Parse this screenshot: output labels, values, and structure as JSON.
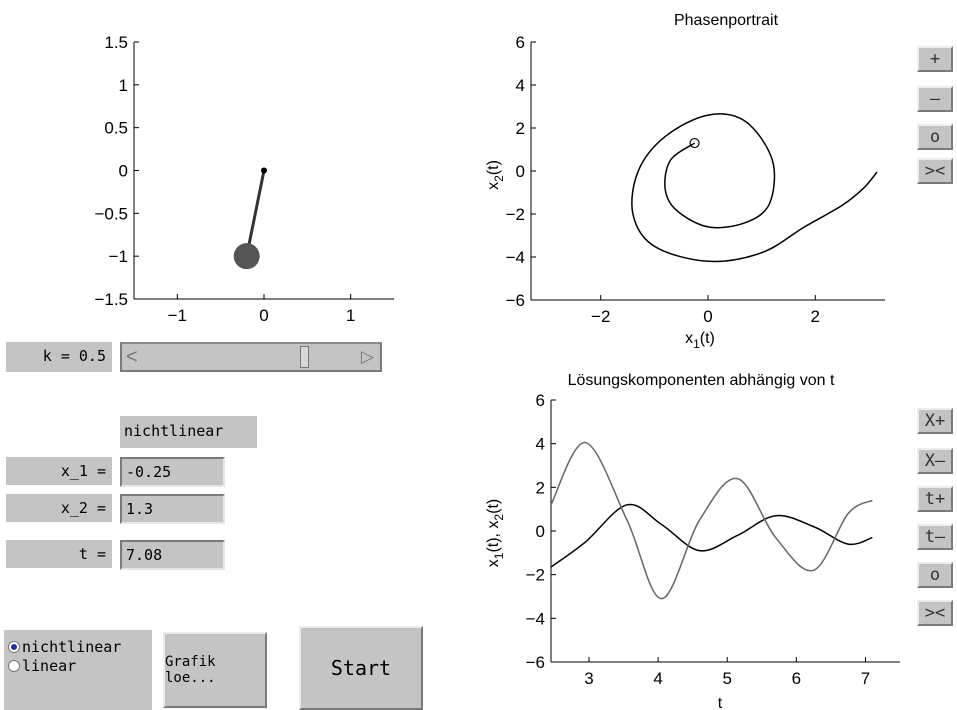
{
  "pendulum_plot": {
    "y_ticks": [
      "1.5",
      "1",
      "0.5",
      "0",
      "−0.5",
      "−1",
      "−1.5"
    ],
    "x_ticks": [
      "−1",
      "0",
      "1"
    ]
  },
  "k_label": "k = 0.5",
  "k_slider": {
    "value": 0.5,
    "left_arrow": "<",
    "right_arrow": "▷"
  },
  "mode_display": "nichtlinear",
  "fields": {
    "x1_label": "x_1 =",
    "x1_value": "-0.25",
    "x2_label": "x_2 =",
    "x2_value": "1.3",
    "t_label": "t =",
    "t_value": "7.08"
  },
  "radio": {
    "options": [
      "nichtlinear",
      "linear"
    ],
    "selected": "nichtlinear"
  },
  "buttons": {
    "clear_label": "Grafik loe...",
    "start_label": "Start"
  },
  "phase_plot": {
    "title": "Phasenportrait",
    "xlabel": "x",
    "xlabel_sub": "1",
    "xlabel_suffix": "(t)",
    "ylabel": "x",
    "ylabel_sub": "2",
    "ylabel_suffix": "(t)",
    "y_ticks": [
      "6",
      "4",
      "2",
      "0",
      "−2",
      "−4",
      "−6"
    ],
    "x_ticks": [
      "−2",
      "0",
      "2"
    ]
  },
  "phase_buttons": [
    "+",
    "–",
    "o",
    "><"
  ],
  "time_plot": {
    "title": "Lösungskomponenten abhängig von t",
    "xlabel": "t",
    "ylabel_a": "x",
    "ylabel_a_sub": "1",
    "ylabel_mid": "(t), x",
    "ylabel_b_sub": "2",
    "ylabel_end": "(t)",
    "y_ticks": [
      "6",
      "4",
      "2",
      "0",
      "−2",
      "−4",
      "−6"
    ],
    "x_ticks": [
      "3",
      "4",
      "5",
      "6",
      "7"
    ]
  },
  "time_buttons": [
    "X+",
    "X–",
    "t+",
    "t–",
    "o",
    "><"
  ],
  "colors": {
    "panel": "#c4c4c4",
    "bob": "#555555",
    "line": "#000000",
    "line2": "#666666",
    "radio_dot": "#2a2fa0"
  },
  "chart_data": [
    {
      "type": "line",
      "x": [
        -0.25
      ],
      "series": [
        {
          "values": [
            1.3
          ]
        }
      ],
      "xlim": [
        -1.5,
        1.5
      ],
      "ylim": [
        -1.5,
        1.5
      ],
      "pendulum_bob": [
        -0.2,
        -1.0
      ],
      "pendulum_pivot": [
        0,
        0
      ]
    },
    {
      "type": "line",
      "title": "Phasenportrait",
      "xlabel": "x1(t)",
      "ylabel": "x2(t)",
      "xlim": [
        -3.3,
        3.3
      ],
      "ylim": [
        -6,
        6
      ],
      "x": [
        -0.25,
        -0.7,
        -0.8,
        -0.6,
        0.0,
        0.7,
        1.15,
        1.2,
        0.7,
        0.0,
        -0.8,
        -1.3,
        -1.4,
        -1.0,
        0.0,
        1.0,
        1.8,
        2.5,
        2.9,
        3.15
      ],
      "series": [
        {
          "values": [
            1.3,
            0.5,
            -0.8,
            -1.8,
            -2.6,
            -2.4,
            -1.5,
            0.5,
            2.3,
            2.6,
            1.6,
            0.0,
            -2.0,
            -3.5,
            -4.2,
            -3.8,
            -2.6,
            -1.6,
            -0.8,
            -0.05
          ]
        }
      ]
    },
    {
      "type": "line",
      "title": "Lösungskomponenten abhängig von t",
      "xlabel": "t",
      "ylabel": "x1(t), x2(t)",
      "xlim": [
        2.45,
        7.5
      ],
      "ylim": [
        -6,
        6
      ],
      "x": [
        2.45,
        2.95,
        3.55,
        4.05,
        4.6,
        5.15,
        5.7,
        6.25,
        6.75,
        7.1
      ],
      "series": [
        {
          "values": [
            -1.65,
            -0.5,
            1.2,
            0.3,
            -0.9,
            -0.2,
            0.7,
            0.2,
            -0.6,
            -0.3
          ]
        },
        {
          "values": [
            1.2,
            4.05,
            0.5,
            -3.1,
            0.5,
            2.4,
            -0.3,
            -1.8,
            0.8,
            1.4
          ]
        }
      ]
    }
  ]
}
